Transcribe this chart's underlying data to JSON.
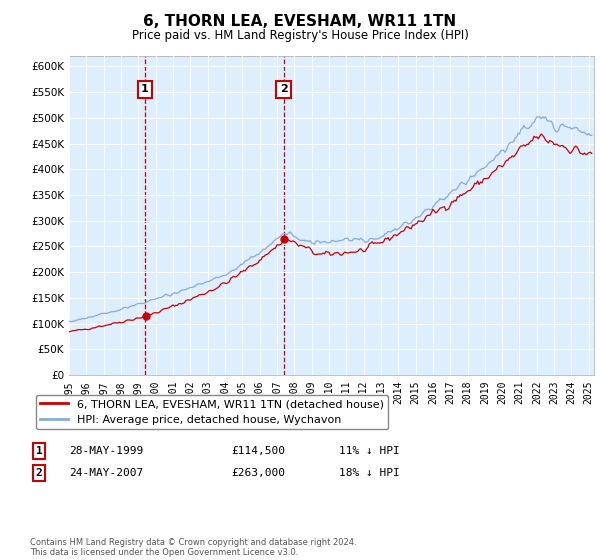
{
  "title": "6, THORN LEA, EVESHAM, WR11 1TN",
  "subtitle": "Price paid vs. HM Land Registry's House Price Index (HPI)",
  "legend_line1": "6, THORN LEA, EVESHAM, WR11 1TN (detached house)",
  "legend_line2": "HPI: Average price, detached house, Wychavon",
  "footnote": "Contains HM Land Registry data © Crown copyright and database right 2024.\nThis data is licensed under the Open Government Licence v3.0.",
  "sale1_label": "1",
  "sale1_date": "28-MAY-1999",
  "sale1_price": "£114,500",
  "sale1_hpi": "11% ↓ HPI",
  "sale2_label": "2",
  "sale2_date": "24-MAY-2007",
  "sale2_price": "£263,000",
  "sale2_hpi": "18% ↓ HPI",
  "red_color": "#cc0000",
  "blue_color": "#88aadd",
  "background_chart": "#ddeeff",
  "ylim": [
    0,
    620000
  ],
  "yticks": [
    0,
    50000,
    100000,
    150000,
    200000,
    250000,
    300000,
    350000,
    400000,
    450000,
    500000,
    550000,
    600000
  ],
  "sale1_year": 1999.38,
  "sale1_value": 114500,
  "sale2_year": 2007.38,
  "sale2_value": 263000,
  "xlim_start": 1995,
  "xlim_end": 2025.3
}
